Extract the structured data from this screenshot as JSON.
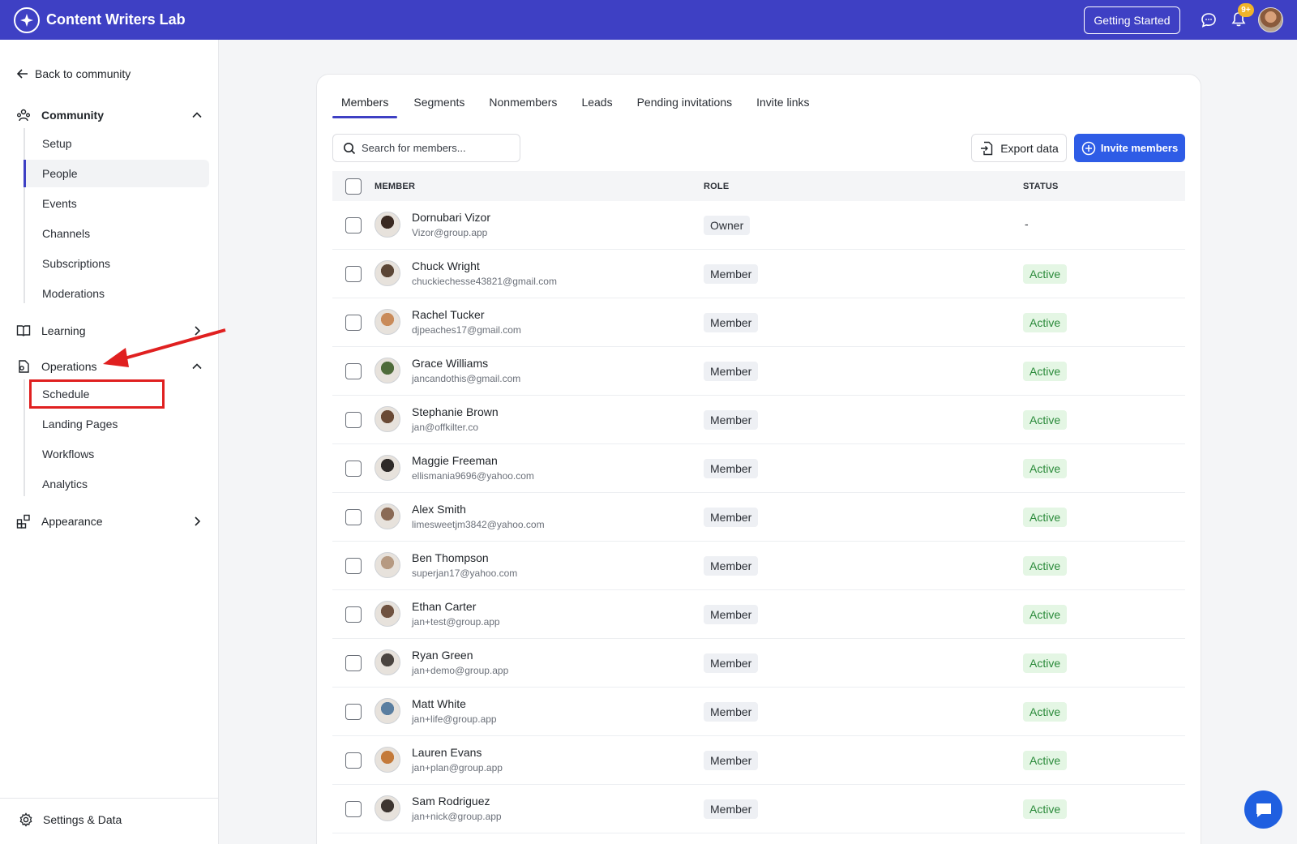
{
  "header": {
    "brand": "Content Writers Lab",
    "getting_started": "Getting Started",
    "notifications_badge": "9+"
  },
  "sidebar": {
    "back_label": "Back to community",
    "community": {
      "label": "Community",
      "items": [
        "Setup",
        "People",
        "Events",
        "Channels",
        "Subscriptions",
        "Moderations"
      ]
    },
    "learning": {
      "label": "Learning"
    },
    "operations": {
      "label": "Operations",
      "items": [
        "Schedule",
        "Landing Pages",
        "Workflows",
        "Analytics"
      ]
    },
    "appearance": {
      "label": "Appearance"
    },
    "settings_label": "Settings & Data"
  },
  "tabs": [
    "Members",
    "Segments",
    "Nonmembers",
    "Leads",
    "Pending invitations",
    "Invite links"
  ],
  "search": {
    "placeholder": "Search for members..."
  },
  "actions": {
    "export": "Export data",
    "invite": "Invite members"
  },
  "table": {
    "headers": {
      "member": "MEMBER",
      "role": "ROLE",
      "status": "STATUS"
    },
    "rows": [
      {
        "name": "Dornubari Vizor",
        "email": "Vizor@group.app",
        "role": "Owner",
        "status": "-"
      },
      {
        "name": "Chuck Wright",
        "email": "chuckiechesse43821@gmail.com",
        "role": "Member",
        "status": "Active"
      },
      {
        "name": "Rachel Tucker",
        "email": "djpeaches17@gmail.com",
        "role": "Member",
        "status": "Active"
      },
      {
        "name": "Grace Williams",
        "email": "jancandothis@gmail.com",
        "role": "Member",
        "status": "Active"
      },
      {
        "name": "Stephanie Brown",
        "email": "jan@offkilter.co",
        "role": "Member",
        "status": "Active"
      },
      {
        "name": "Maggie Freeman",
        "email": "ellismania9696@yahoo.com",
        "role": "Member",
        "status": "Active"
      },
      {
        "name": "Alex Smith",
        "email": "limesweetjm3842@yahoo.com",
        "role": "Member",
        "status": "Active"
      },
      {
        "name": "Ben Thompson",
        "email": "superjan17@yahoo.com",
        "role": "Member",
        "status": "Active"
      },
      {
        "name": "Ethan Carter",
        "email": "jan+test@group.app",
        "role": "Member",
        "status": "Active"
      },
      {
        "name": "Ryan Green",
        "email": "jan+demo@group.app",
        "role": "Member",
        "status": "Active"
      },
      {
        "name": "Matt White",
        "email": "jan+life@group.app",
        "role": "Member",
        "status": "Active"
      },
      {
        "name": "Lauren Evans",
        "email": "jan+plan@group.app",
        "role": "Member",
        "status": "Active"
      },
      {
        "name": "Sam Rodriguez",
        "email": "jan+nick@group.app",
        "role": "Member",
        "status": "Active"
      }
    ]
  },
  "colors": {
    "brand": "#3e40c4",
    "primary_button": "#2e5ce6",
    "status_active_bg": "#e4f6e4",
    "status_active_text": "#2a8a3a",
    "annotation_red": "#e02020"
  },
  "avatar_colors": [
    "#3a2a22",
    "#5b4636",
    "#c98b5a",
    "#4f6b3a",
    "#6a4a35",
    "#2e2a28",
    "#8a6a55",
    "#b69a82",
    "#6f5240",
    "#4a4440",
    "#5a7ea0",
    "#c47a3a",
    "#3d3530"
  ]
}
